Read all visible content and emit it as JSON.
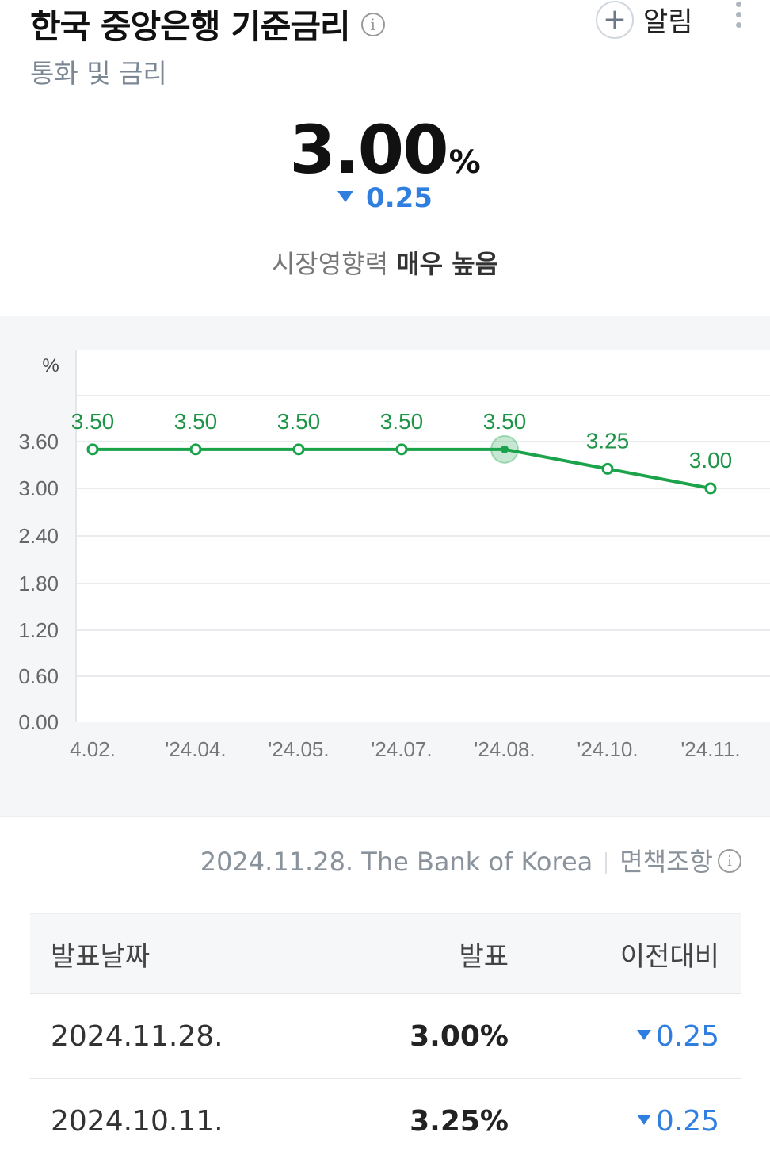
{
  "header": {
    "title": "한국 중앙은행 기준금리",
    "subtitle": "통화 및 금리",
    "alarm_label": "알림"
  },
  "summary": {
    "value": "3.00",
    "unit": "%",
    "change": "0.25",
    "influence_label": "시장영향력",
    "influence_value": "매우 높음"
  },
  "colors": {
    "line": "#1aa34a",
    "down": "#2f7ee0"
  },
  "chart_data": {
    "type": "line",
    "ylabel": "%",
    "yticks": [
      "3.60",
      "3.00",
      "2.40",
      "1.80",
      "1.20",
      "0.60",
      "0.00"
    ],
    "categories": [
      "4.02.",
      "'24.04.",
      "'24.05.",
      "'24.07.",
      "'24.08.",
      "'24.10.",
      "'24.11."
    ],
    "values": [
      3.5,
      3.5,
      3.5,
      3.5,
      3.5,
      3.25,
      3.0
    ],
    "value_labels": [
      "3.50",
      "3.50",
      "3.50",
      "3.50",
      "3.50",
      "3.25",
      "3.00"
    ],
    "highlighted_index": 4,
    "grid": true
  },
  "source": {
    "text": "2024.11.28. The Bank of Korea",
    "disclaimer": "면책조항"
  },
  "table": {
    "headers": [
      "발표날짜",
      "발표",
      "이전대비"
    ],
    "rows": [
      {
        "date": "2024.11.28.",
        "value": "3.00%",
        "change": "0.25"
      },
      {
        "date": "2024.10.11.",
        "value": "3.25%",
        "change": "0.25"
      }
    ]
  }
}
